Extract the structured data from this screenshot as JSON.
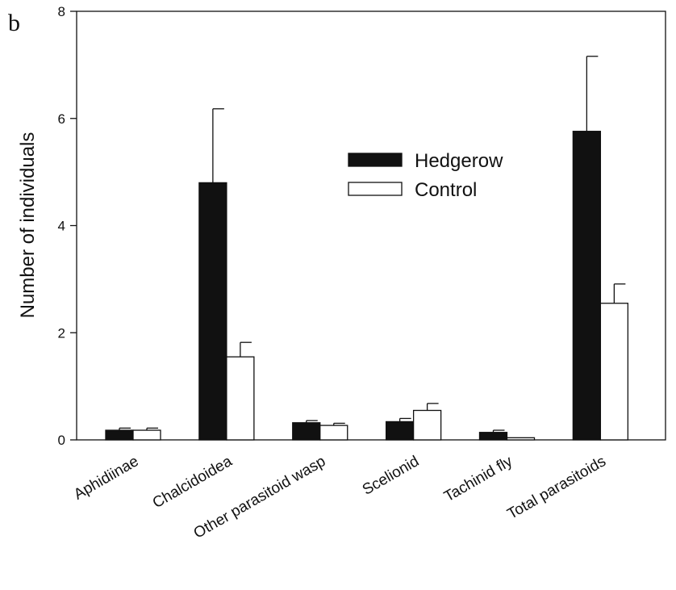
{
  "panel_label": "b",
  "chart_data": {
    "type": "bar",
    "ylabel": "Number of individuals",
    "xlabel": "",
    "ylim": [
      0,
      8
    ],
    "yticks": [
      0,
      2,
      4,
      6,
      8
    ],
    "categories": [
      "Aphidiinae",
      "Chalcidoidea",
      "Other parasitoid wasp",
      "Scelionid",
      "Tachinid fly",
      "Total parasitoids"
    ],
    "series": [
      {
        "name": "Hedgerow",
        "fill": "#111111",
        "values": [
          0.18,
          4.8,
          0.32,
          0.34,
          0.14,
          5.76
        ],
        "errors": [
          0.04,
          1.38,
          0.04,
          0.06,
          0.04,
          1.4
        ]
      },
      {
        "name": "Control",
        "fill": "#ffffff",
        "values": [
          0.18,
          1.55,
          0.27,
          0.55,
          0.04,
          2.55
        ],
        "errors": [
          0.04,
          0.27,
          0.04,
          0.13,
          0.0,
          0.36
        ]
      }
    ],
    "legend": {
      "position": "top-center"
    },
    "grid": false
  }
}
